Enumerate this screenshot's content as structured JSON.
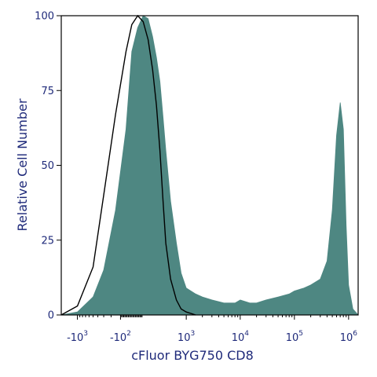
{
  "chart_data": {
    "type": "area",
    "title": "",
    "xlabel": "cFluor BYG750 CD8",
    "ylabel": "Relative Cell Number",
    "x_scale": "biexponential",
    "x_ticks": [
      {
        "base": "-10",
        "exp": "3",
        "pos": -1000
      },
      {
        "base": "-10",
        "exp": "2",
        "pos": -100
      },
      {
        "base": "10",
        "exp": "3",
        "pos": 1000
      },
      {
        "base": "10",
        "exp": "4",
        "pos": 10000
      },
      {
        "base": "10",
        "exp": "5",
        "pos": 100000
      },
      {
        "base": "10",
        "exp": "6",
        "pos": 1000000
      }
    ],
    "y_ticks": [
      "0",
      "25",
      "50",
      "75",
      "100"
    ],
    "ylim": [
      0,
      100
    ],
    "grid": false,
    "legend": "none",
    "colors": {
      "filled": "#4e8782",
      "overlay": "#000000",
      "axis": "#000000",
      "labels": "#1f2a7a"
    },
    "series": [
      {
        "style": "filled",
        "x": [
          -2000,
          -1000,
          -500,
          -300,
          -150,
          -50,
          0,
          50,
          100,
          150,
          200,
          250,
          300,
          350,
          400,
          500,
          650,
          800,
          1000,
          1500,
          2000,
          3000,
          5000,
          8000,
          10000,
          15000,
          20000,
          30000,
          50000,
          80000,
          100000,
          150000,
          200000,
          300000,
          400000,
          500000,
          600000,
          700000,
          800000,
          900000,
          1000000,
          1200000,
          1500000
        ],
        "y": [
          0,
          1,
          6,
          15,
          35,
          62,
          88,
          96,
          100,
          99,
          93,
          86,
          78,
          66,
          55,
          38,
          24,
          14,
          9,
          7,
          6,
          5,
          4,
          4,
          5,
          4,
          4,
          5,
          6,
          7,
          8,
          9,
          10,
          12,
          18,
          35,
          60,
          71,
          62,
          30,
          10,
          2,
          0
        ]
      },
      {
        "style": "outline",
        "x": [
          -2000,
          -1000,
          -500,
          -300,
          -150,
          -50,
          0,
          50,
          100,
          150,
          200,
          250,
          300,
          350,
          400,
          500,
          650,
          800,
          1000,
          1500
        ],
        "y": [
          0,
          3,
          16,
          40,
          67,
          88,
          97,
          100,
          98,
          92,
          82,
          70,
          55,
          38,
          24,
          12,
          5,
          2,
          1,
          0
        ]
      }
    ]
  }
}
